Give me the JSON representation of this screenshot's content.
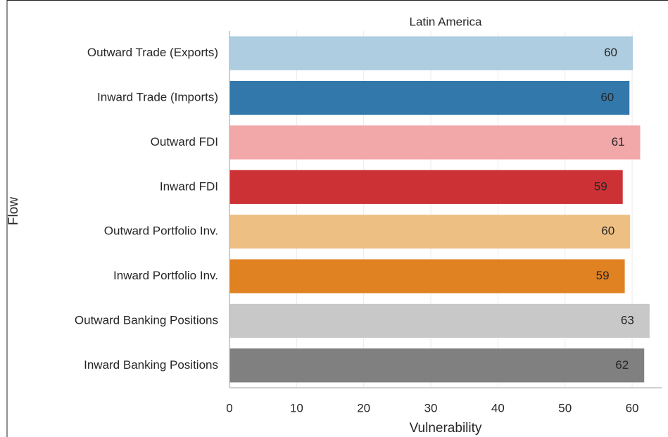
{
  "chart_data": {
    "type": "barh",
    "title": "Latin America",
    "xlabel": "Vulnerability",
    "ylabel": "Flow",
    "categories": [
      "Outward Trade (Exports)",
      "Inward Trade (Imports)",
      "Outward FDI",
      "Inward FDI",
      "Outward Portfolio Inv.",
      "Inward Portfolio Inv.",
      "Outward Banking Positions",
      "Inward Banking Positions"
    ],
    "values": [
      60.1,
      59.6,
      61.2,
      58.6,
      59.7,
      58.9,
      62.6,
      61.8
    ],
    "value_labels": [
      "60",
      "60",
      "61",
      "59",
      "60",
      "59",
      "63",
      "62"
    ],
    "colors": [
      "#aecde0",
      "#3378ab",
      "#f2a7a8",
      "#cc3136",
      "#eebf83",
      "#e08122",
      "#c8c8c8",
      "#808080"
    ],
    "xlim": [
      0,
      64.4
    ],
    "xticks": [
      0,
      10,
      20,
      30,
      40,
      50,
      60
    ],
    "grid": true
  }
}
